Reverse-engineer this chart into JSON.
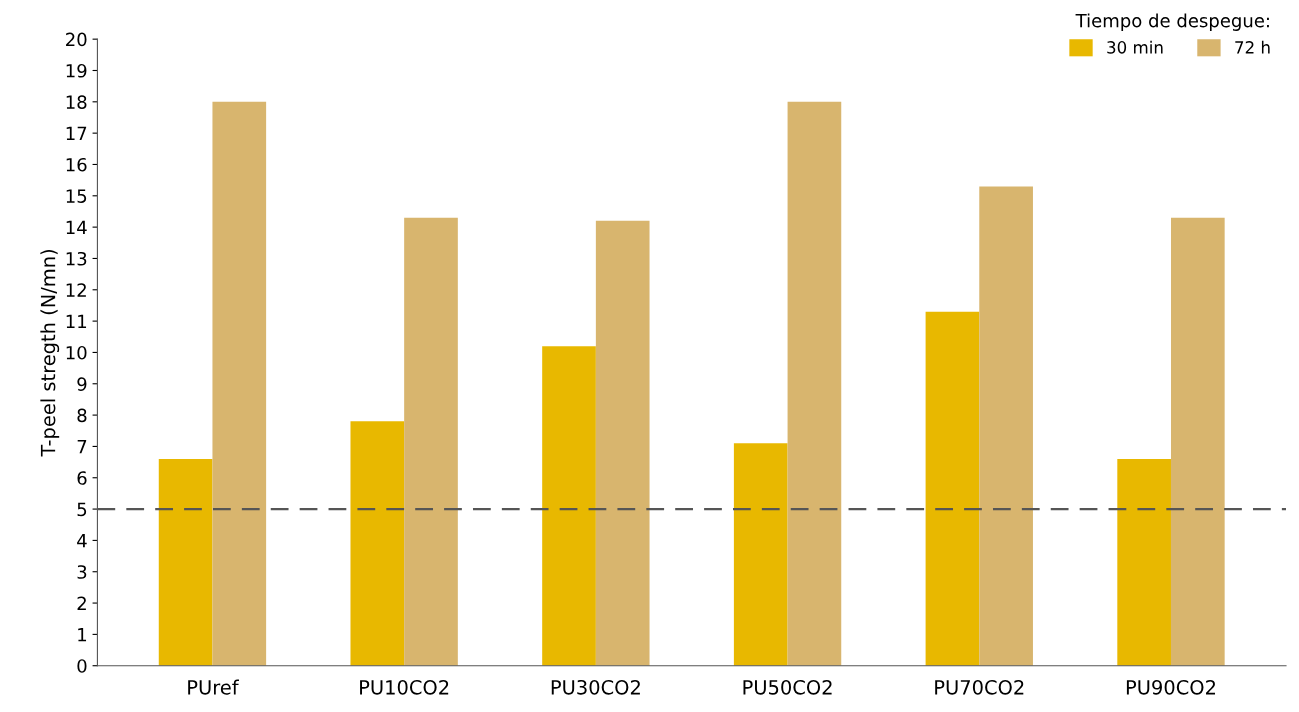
{
  "chart_data": {
    "type": "bar",
    "ylabel": "T-peel stregth (N/mn)",
    "legend_title": "Tiempo de despegue:",
    "categories": [
      "PUref",
      "PU10CO2",
      "PU30CO2",
      "PU50CO2",
      "PU70CO2",
      "PU90CO2"
    ],
    "series": [
      {
        "name": "30 min",
        "color": "#e8b800",
        "values": [
          6.6,
          7.8,
          10.2,
          7.1,
          11.3,
          6.6
        ]
      },
      {
        "name": "72 h",
        "color": "#d8b56e",
        "values": [
          18.0,
          14.3,
          14.2,
          18.0,
          15.3,
          14.3
        ]
      }
    ],
    "ylim": [
      0,
      20
    ],
    "yticks": [
      0,
      1,
      2,
      3,
      4,
      5,
      6,
      7,
      8,
      9,
      10,
      11,
      12,
      13,
      14,
      15,
      16,
      17,
      18,
      19,
      20
    ],
    "ref_lines": [
      {
        "axis": "y",
        "value": 5,
        "color": "#555555",
        "line_style": "dashed"
      }
    ],
    "grid": false,
    "legend": "top right"
  }
}
